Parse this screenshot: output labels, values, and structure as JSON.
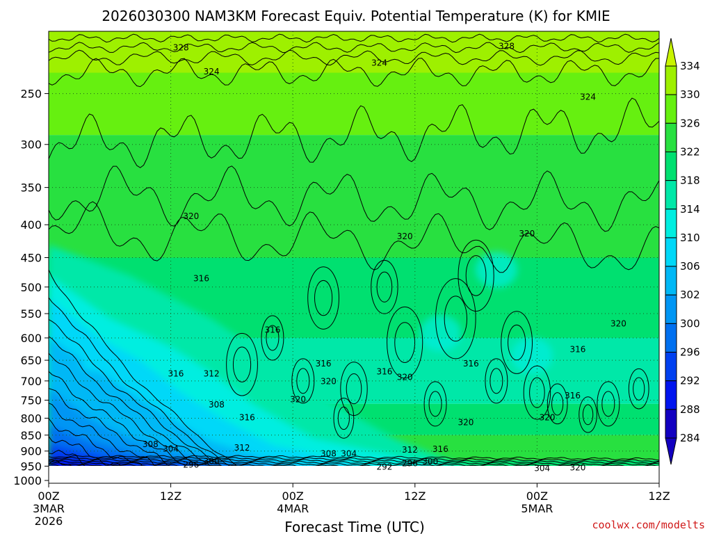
{
  "chart_data": {
    "type": "heatmap",
    "title": "2026030300 NAM3KM Forecast Equiv. Potential Temperature (K) for KMIE",
    "xlabel": "Forecast Time (UTC)",
    "ylabel": "",
    "x_unit": "forecast hours",
    "xlim": [
      0,
      60
    ],
    "y_unit": "hPa",
    "ylim": [
      1000,
      200
    ],
    "x_ticks": [
      {
        "hour": 0,
        "label": "00Z",
        "sub1": "3MAR",
        "sub2": "2026"
      },
      {
        "hour": 12,
        "label": "12Z"
      },
      {
        "hour": 24,
        "label": "00Z",
        "sub1": "4MAR"
      },
      {
        "hour": 36,
        "label": "12Z"
      },
      {
        "hour": 48,
        "label": "00Z",
        "sub1": "5MAR"
      },
      {
        "hour": 60,
        "label": "12Z"
      }
    ],
    "y_ticks": [
      250,
      300,
      350,
      400,
      450,
      500,
      550,
      600,
      650,
      700,
      750,
      800,
      850,
      900,
      950,
      1000
    ],
    "colorbar_levels": [
      284,
      288,
      292,
      296,
      300,
      302,
      306,
      310,
      314,
      318,
      322,
      326,
      330,
      334
    ],
    "contour_interval": 4,
    "surface_pressure": 975,
    "contour_labels": [
      {
        "value": 328,
        "hour": 13,
        "p": 212
      },
      {
        "value": 328,
        "hour": 45,
        "p": 211
      },
      {
        "value": 324,
        "hour": 16,
        "p": 231
      },
      {
        "value": 324,
        "hour": 32.5,
        "p": 224
      },
      {
        "value": 324,
        "hour": 53,
        "p": 253
      },
      {
        "value": 320,
        "hour": 14,
        "p": 388
      },
      {
        "value": 320,
        "hour": 35,
        "p": 417
      },
      {
        "value": 320,
        "hour": 47,
        "p": 413
      },
      {
        "value": 320,
        "hour": 56,
        "p": 570
      },
      {
        "value": 316,
        "hour": 15,
        "p": 485
      },
      {
        "value": 316,
        "hour": 22,
        "p": 583
      },
      {
        "value": 316,
        "hour": 27,
        "p": 658
      },
      {
        "value": 316,
        "hour": 33,
        "p": 677
      },
      {
        "value": 316,
        "hour": 41.5,
        "p": 658
      },
      {
        "value": 316,
        "hour": 52,
        "p": 625
      },
      {
        "value": 316,
        "hour": 51.5,
        "p": 738
      },
      {
        "value": 316,
        "hour": 19.5,
        "p": 798
      },
      {
        "value": 320,
        "hour": 27.5,
        "p": 701
      },
      {
        "value": 320,
        "hour": 24.5,
        "p": 748
      },
      {
        "value": 320,
        "hour": 35,
        "p": 691
      },
      {
        "value": 320,
        "hour": 41,
        "p": 812
      },
      {
        "value": 320,
        "hour": 49,
        "p": 798
      },
      {
        "value": 320,
        "hour": 52,
        "p": 955
      },
      {
        "value": 316,
        "hour": 12.5,
        "p": 682
      },
      {
        "value": 312,
        "hour": 16,
        "p": 682
      },
      {
        "value": 312,
        "hour": 19,
        "p": 890
      },
      {
        "value": 312,
        "hour": 35.5,
        "p": 896
      },
      {
        "value": 316,
        "hour": 38.5,
        "p": 894
      },
      {
        "value": 308,
        "hour": 16.5,
        "p": 762
      },
      {
        "value": 308,
        "hour": 10,
        "p": 879
      },
      {
        "value": 304,
        "hour": 12,
        "p": 893
      },
      {
        "value": 308,
        "hour": 27.5,
        "p": 908
      },
      {
        "value": 304,
        "hour": 29.5,
        "p": 908
      },
      {
        "value": 300,
        "hour": 16,
        "p": 934
      },
      {
        "value": 296,
        "hour": 14,
        "p": 945
      },
      {
        "value": 292,
        "hour": 33,
        "p": 952
      },
      {
        "value": 296,
        "hour": 35.5,
        "p": 941
      },
      {
        "value": 300,
        "hour": 37.5,
        "p": 935
      },
      {
        "value": 304,
        "hour": 48.5,
        "p": 957
      }
    ]
  },
  "credit": "coolwx.com/modelts",
  "colors": {
    "c284": "#1200c0",
    "c288": "#0014ee",
    "c292": "#0040f0",
    "c296": "#0070f0",
    "c300": "#0096f4",
    "c302": "#00b8f6",
    "c306": "#00d8f8",
    "c310": "#00eee0",
    "c314": "#00e8a8",
    "c318": "#00e070",
    "c322": "#28e040",
    "c326": "#66f010",
    "c330": "#9ef000",
    "c334": "#c8f400",
    "ground": "#9a4a24"
  }
}
